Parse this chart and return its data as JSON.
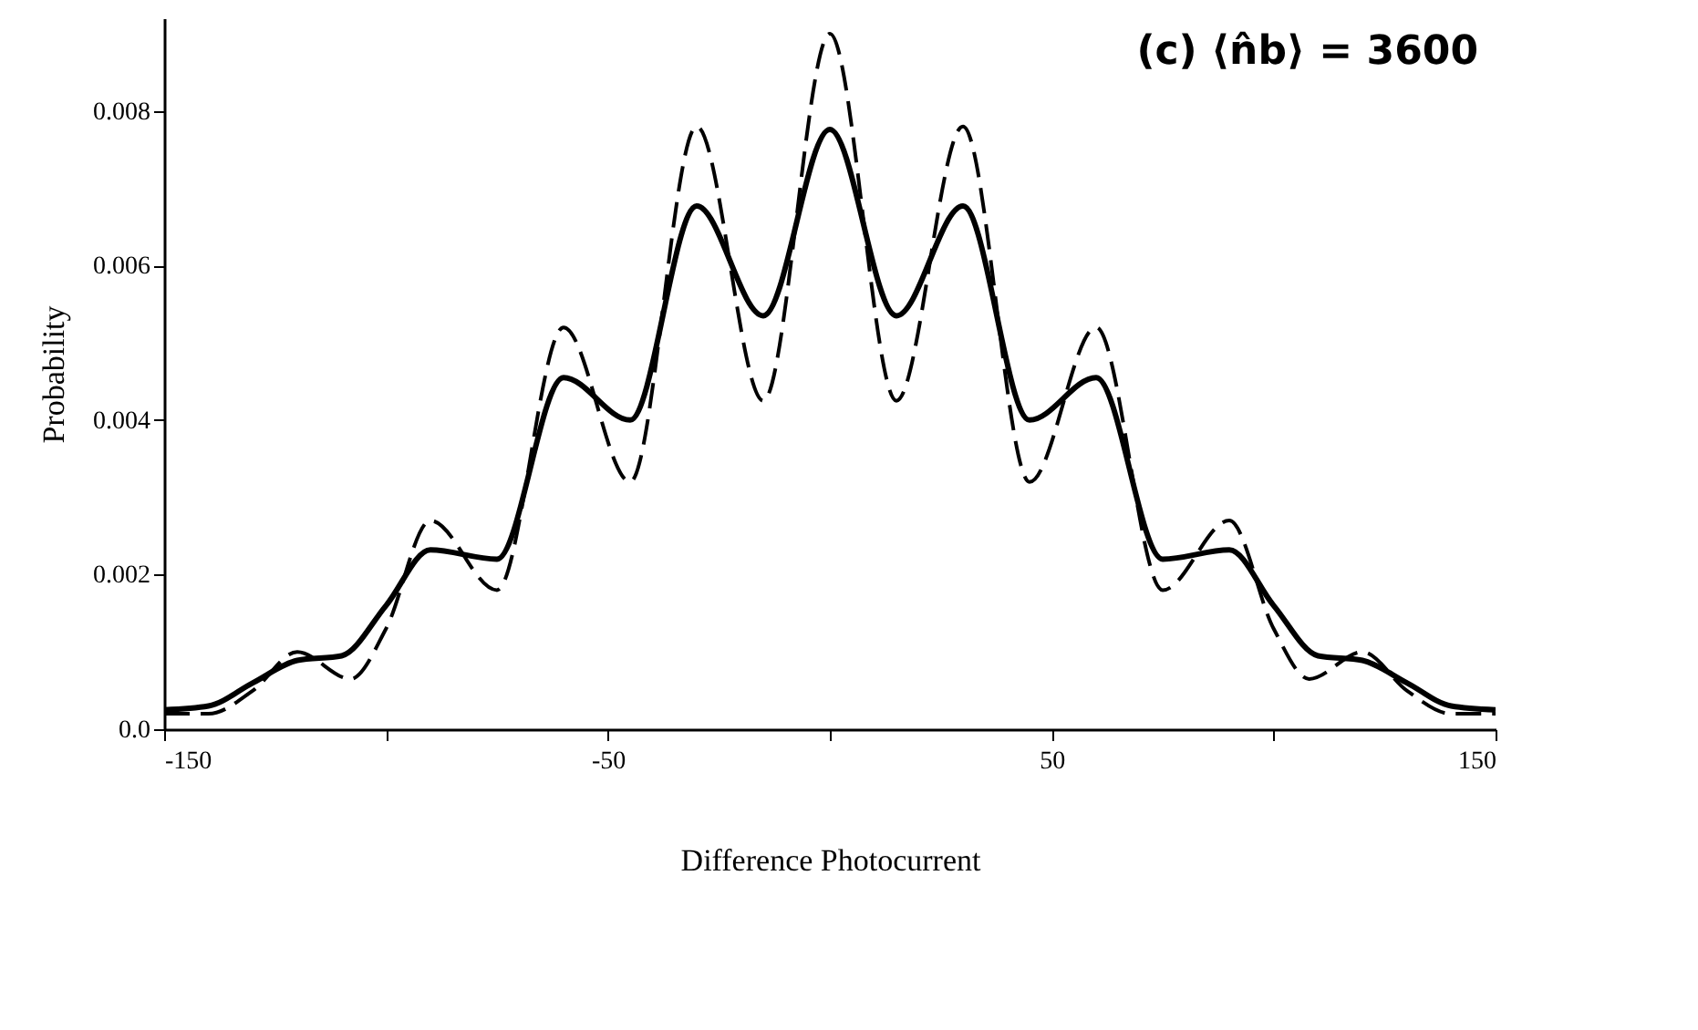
{
  "chart_data": {
    "type": "line",
    "title": "(c) ⟨n̂b⟩ = 3600",
    "xlabel": "Difference Photocurrent",
    "ylabel": "Probability",
    "xlim": [
      -150,
      150
    ],
    "xticks": [
      -150,
      {
        "value": -100,
        "label": null
      },
      -50,
      {
        "value": 0,
        "label": null
      },
      50,
      {
        "value": 100,
        "label": null
      },
      150
    ],
    "ylim": [
      0,
      0.0092
    ],
    "yticks": [
      {
        "value": 0,
        "label": "0.0"
      },
      0.002,
      0.004,
      0.006,
      0.008
    ],
    "grid": false,
    "marker": "none",
    "series": [
      {
        "color": "#000000",
        "line_style": "solid",
        "x": [
          -150,
          -140,
          -130,
          -120,
          -110,
          -100,
          -90,
          -75,
          -60,
          -45,
          -30,
          -15,
          0,
          15,
          30,
          45,
          60,
          75,
          90,
          100,
          110,
          120,
          130,
          140,
          150
        ],
        "values": [
          0.00025,
          0.0003,
          0.0006,
          0.00089,
          0.00095,
          0.0016,
          0.00232,
          0.0022,
          0.00455,
          0.004,
          0.00677,
          0.00535,
          0.00776,
          0.00535,
          0.00677,
          0.004,
          0.00455,
          0.0022,
          0.00232,
          0.0016,
          0.00095,
          0.00089,
          0.0006,
          0.0003,
          0.00025
        ]
      },
      {
        "color": "#000000",
        "line_style": "dashed",
        "x": [
          -150,
          -140,
          -130,
          -120,
          -108,
          -100,
          -90,
          -75,
          -60,
          -45,
          -30,
          -15,
          0,
          15,
          30,
          45,
          60,
          75,
          90,
          100,
          108,
          120,
          130,
          140,
          150
        ],
        "values": [
          0.0002,
          0.0002,
          0.0005,
          0.001,
          0.00065,
          0.0013,
          0.0027,
          0.0018,
          0.0052,
          0.0032,
          0.0078,
          0.00425,
          0.009,
          0.00425,
          0.0078,
          0.0032,
          0.0052,
          0.0018,
          0.0027,
          0.0013,
          0.00065,
          0.001,
          0.0005,
          0.0002,
          0.0002
        ]
      }
    ]
  }
}
